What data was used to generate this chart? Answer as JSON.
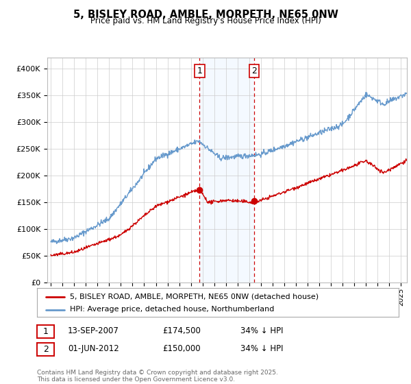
{
  "title1": "5, BISLEY ROAD, AMBLE, MORPETH, NE65 0NW",
  "title2": "Price paid vs. HM Land Registry's House Price Index (HPI)",
  "legend_line1": "5, BISLEY ROAD, AMBLE, MORPETH, NE65 0NW (detached house)",
  "legend_line2": "HPI: Average price, detached house, Northumberland",
  "sale1_date": "13-SEP-2007",
  "sale1_price": "£174,500",
  "sale1_hpi": "34% ↓ HPI",
  "sale2_date": "01-JUN-2012",
  "sale2_price": "£150,000",
  "sale2_hpi": "34% ↓ HPI",
  "footer": "Contains HM Land Registry data © Crown copyright and database right 2025.\nThis data is licensed under the Open Government Licence v3.0.",
  "red_color": "#cc0000",
  "blue_color": "#6699cc",
  "shade_color": "#ddeeff",
  "vline_color": "#cc0000",
  "background": "#ffffff",
  "grid_color": "#cccccc",
  "ylim_min": 0,
  "ylim_max": 420000,
  "sale1_year": 2007.75,
  "sale2_year": 2012.4,
  "xmin": 1995.0,
  "xmax": 2025.5
}
